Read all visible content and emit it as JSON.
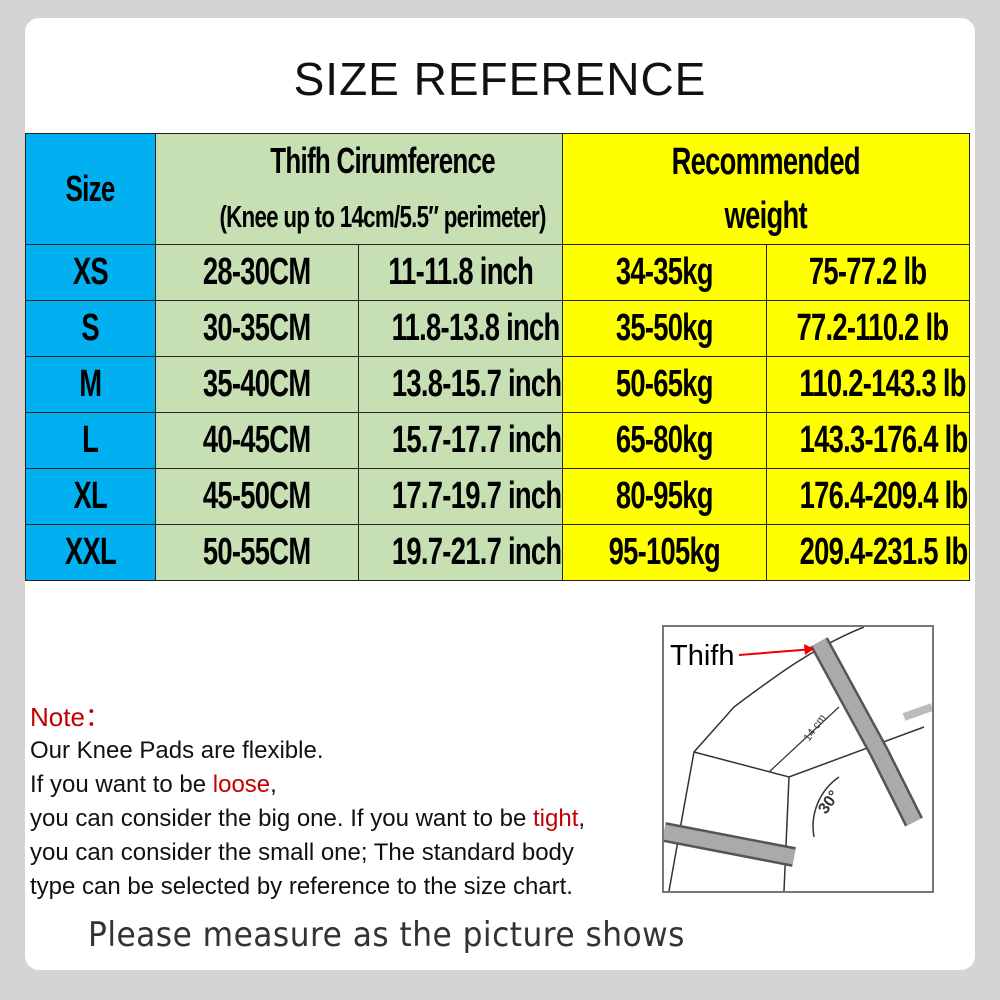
{
  "title": "SIZE REFERENCE",
  "table": {
    "header": {
      "size": "Size",
      "thigh_line1": "Thifh Cirumference",
      "thigh_line2": "(Knee up to 14cm/5.5″ perimeter)",
      "weight_line1": "Recommended",
      "weight_line2": "weight"
    },
    "rows": [
      [
        "XS",
        "28-30CM",
        "11-11.8 inch",
        "34-35kg",
        "75-77.2 lb"
      ],
      [
        "S",
        "30-35CM",
        "11.8-13.8 inch",
        "35-50kg",
        "77.2-110.2 lb"
      ],
      [
        "M",
        "35-40CM",
        "13.8-15.7 inch",
        "50-65kg",
        "110.2-143.3 lb"
      ],
      [
        "L",
        "40-45CM",
        "15.7-17.7 inch",
        "65-80kg",
        "143.3-176.4 lb"
      ],
      [
        "XL",
        "45-50CM",
        "17.7-19.7 inch",
        "80-95kg",
        "176.4-209.4 lb"
      ],
      [
        "XXL",
        "50-55CM",
        "19.7-21.7 inch",
        "95-105kg",
        "209.4-231.5 lb"
      ]
    ],
    "colors": {
      "size": "#00b0f0",
      "thigh": "#c6e0b4",
      "weight": "#ffff00"
    }
  },
  "note": {
    "label": "Note：",
    "line1": "Our Knee Pads are flexible.",
    "line2a": "If you want to be ",
    "loose": "loose",
    "line2b": ",",
    "line3a": "you can consider the big one. If you want to be ",
    "tight": "tight",
    "line3b": ",",
    "line4": "you can consider the small one; The standard body",
    "line5": "type can be selected by reference to the size chart."
  },
  "diagram": {
    "thigh_label": "Thifh",
    "distance_label": "14 cm",
    "angle_label": "30°"
  },
  "footer": "Please measure as the picture shows"
}
